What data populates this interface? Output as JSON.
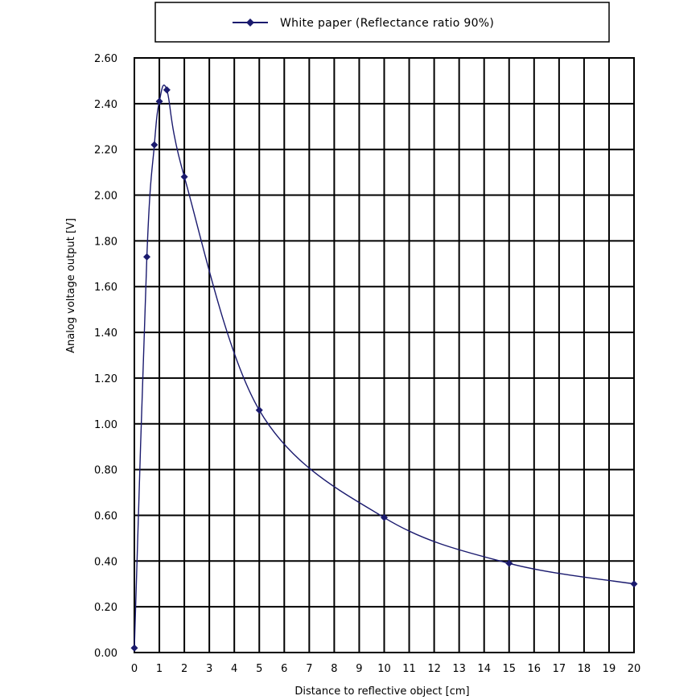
{
  "chart_data": {
    "type": "line",
    "title": "",
    "xlabel": "Distance to reflective object [cm]",
    "ylabel": "Analog voltage output [V]",
    "xlim": [
      0,
      20
    ],
    "ylim": [
      0,
      2.6
    ],
    "grid": true,
    "legend_position": "top",
    "x_ticks": [
      "0",
      "1",
      "2",
      "3",
      "4",
      "5",
      "6",
      "7",
      "8",
      "9",
      "10",
      "11",
      "12",
      "13",
      "14",
      "15",
      "16",
      "17",
      "18",
      "19",
      "20"
    ],
    "y_ticks": [
      "0.00",
      "0.20",
      "0.40",
      "0.60",
      "0.80",
      "1.00",
      "1.20",
      "1.40",
      "1.60",
      "1.80",
      "2.00",
      "2.20",
      "2.40",
      "2.60"
    ],
    "series": [
      {
        "name": "White paper (Reflectance ratio 90%)",
        "color": "#1a1a6e",
        "marker": "diamond",
        "x": [
          0,
          0.5,
          0.8,
          1.0,
          1.3,
          2,
          5,
          10,
          15,
          20
        ],
        "y": [
          0.02,
          1.73,
          2.22,
          2.41,
          2.46,
          2.08,
          1.06,
          0.59,
          0.39,
          0.3
        ]
      }
    ]
  }
}
